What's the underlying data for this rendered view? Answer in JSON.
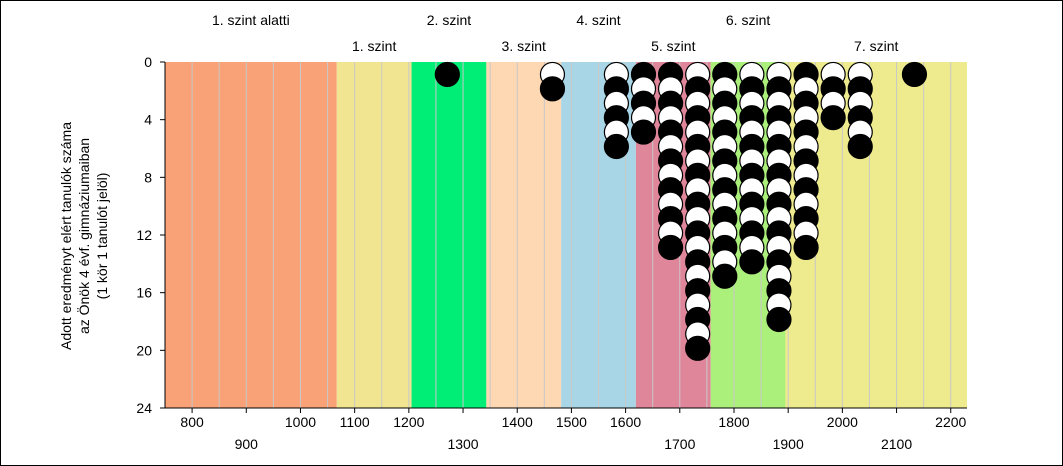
{
  "chart_data": {
    "type": "scatter",
    "title": "",
    "ylabel_lines": [
      "Adott eredményt elért tanulók száma",
      "az Önök 4 évf. gimnáziumaiban",
      "(1 kör 1 tanulót jelöl)"
    ],
    "xlabel": "",
    "xlim": [
      750,
      2230
    ],
    "ylim": [
      0,
      24
    ],
    "y_inverted": true,
    "y_ticks": [
      0,
      4,
      8,
      12,
      16,
      20,
      24
    ],
    "x_ticks_upper": [
      800,
      1000,
      1100,
      1200,
      1400,
      1500,
      1600,
      1800,
      2000,
      2200
    ],
    "x_ticks_lower": [
      900,
      1300,
      1700,
      1900,
      2100
    ],
    "x_tick_labels_upper": [
      "800",
      "1000",
      "1100",
      "1200",
      "1400",
      "1500",
      "1600",
      "1800",
      "2000",
      "2200"
    ],
    "x_tick_labels_lower": [
      "900",
      "1300",
      "1700",
      "1900",
      "2100"
    ],
    "grid_vertical_step": 50,
    "bands": [
      {
        "label": "1. szint alatti",
        "from": 750,
        "to": 1067,
        "color": "#f9a277",
        "label_row": "top"
      },
      {
        "label": "1. szint",
        "from": 1067,
        "to": 1205,
        "color": "#f2e592",
        "label_row": "bottom"
      },
      {
        "label": "2. szint",
        "from": 1205,
        "to": 1343,
        "color": "#00ee76",
        "label_row": "top"
      },
      {
        "label": "3. szint",
        "from": 1343,
        "to": 1481,
        "color": "#fdd8b2",
        "label_row": "bottom"
      },
      {
        "label": "4. szint",
        "from": 1481,
        "to": 1619,
        "color": "#a9d6e6",
        "label_row": "top"
      },
      {
        "label": "5. szint",
        "from": 1619,
        "to": 1757,
        "color": "#e0869a",
        "label_row": "bottom"
      },
      {
        "label": "6. szint",
        "from": 1757,
        "to": 1895,
        "color": "#acf07c",
        "label_row": "top"
      },
      {
        "label": "7. szint",
        "from": 1895,
        "to": 2230,
        "color": "#eeeb8e",
        "label_row": "bottom"
      }
    ],
    "columns": [
      {
        "x": 1271,
        "count": 1
      },
      {
        "x": 1465,
        "count": 2
      },
      {
        "x": 1583,
        "count": 6
      },
      {
        "x": 1633,
        "count": 5
      },
      {
        "x": 1683,
        "count": 13
      },
      {
        "x": 1733,
        "count": 20
      },
      {
        "x": 1783,
        "count": 15
      },
      {
        "x": 1833,
        "count": 14
      },
      {
        "x": 1883,
        "count": 18
      },
      {
        "x": 1933,
        "count": 13
      },
      {
        "x": 1983,
        "count": 4
      },
      {
        "x": 2033,
        "count": 6
      },
      {
        "x": 2133,
        "count": 1
      }
    ],
    "marker_pattern": "alternating black and white circles, bottom-most circle of each column is black when count is odd and white when count is even",
    "colors": {
      "black": "#000000",
      "white": "#ffffff",
      "grid": "#c8c8c8"
    }
  }
}
